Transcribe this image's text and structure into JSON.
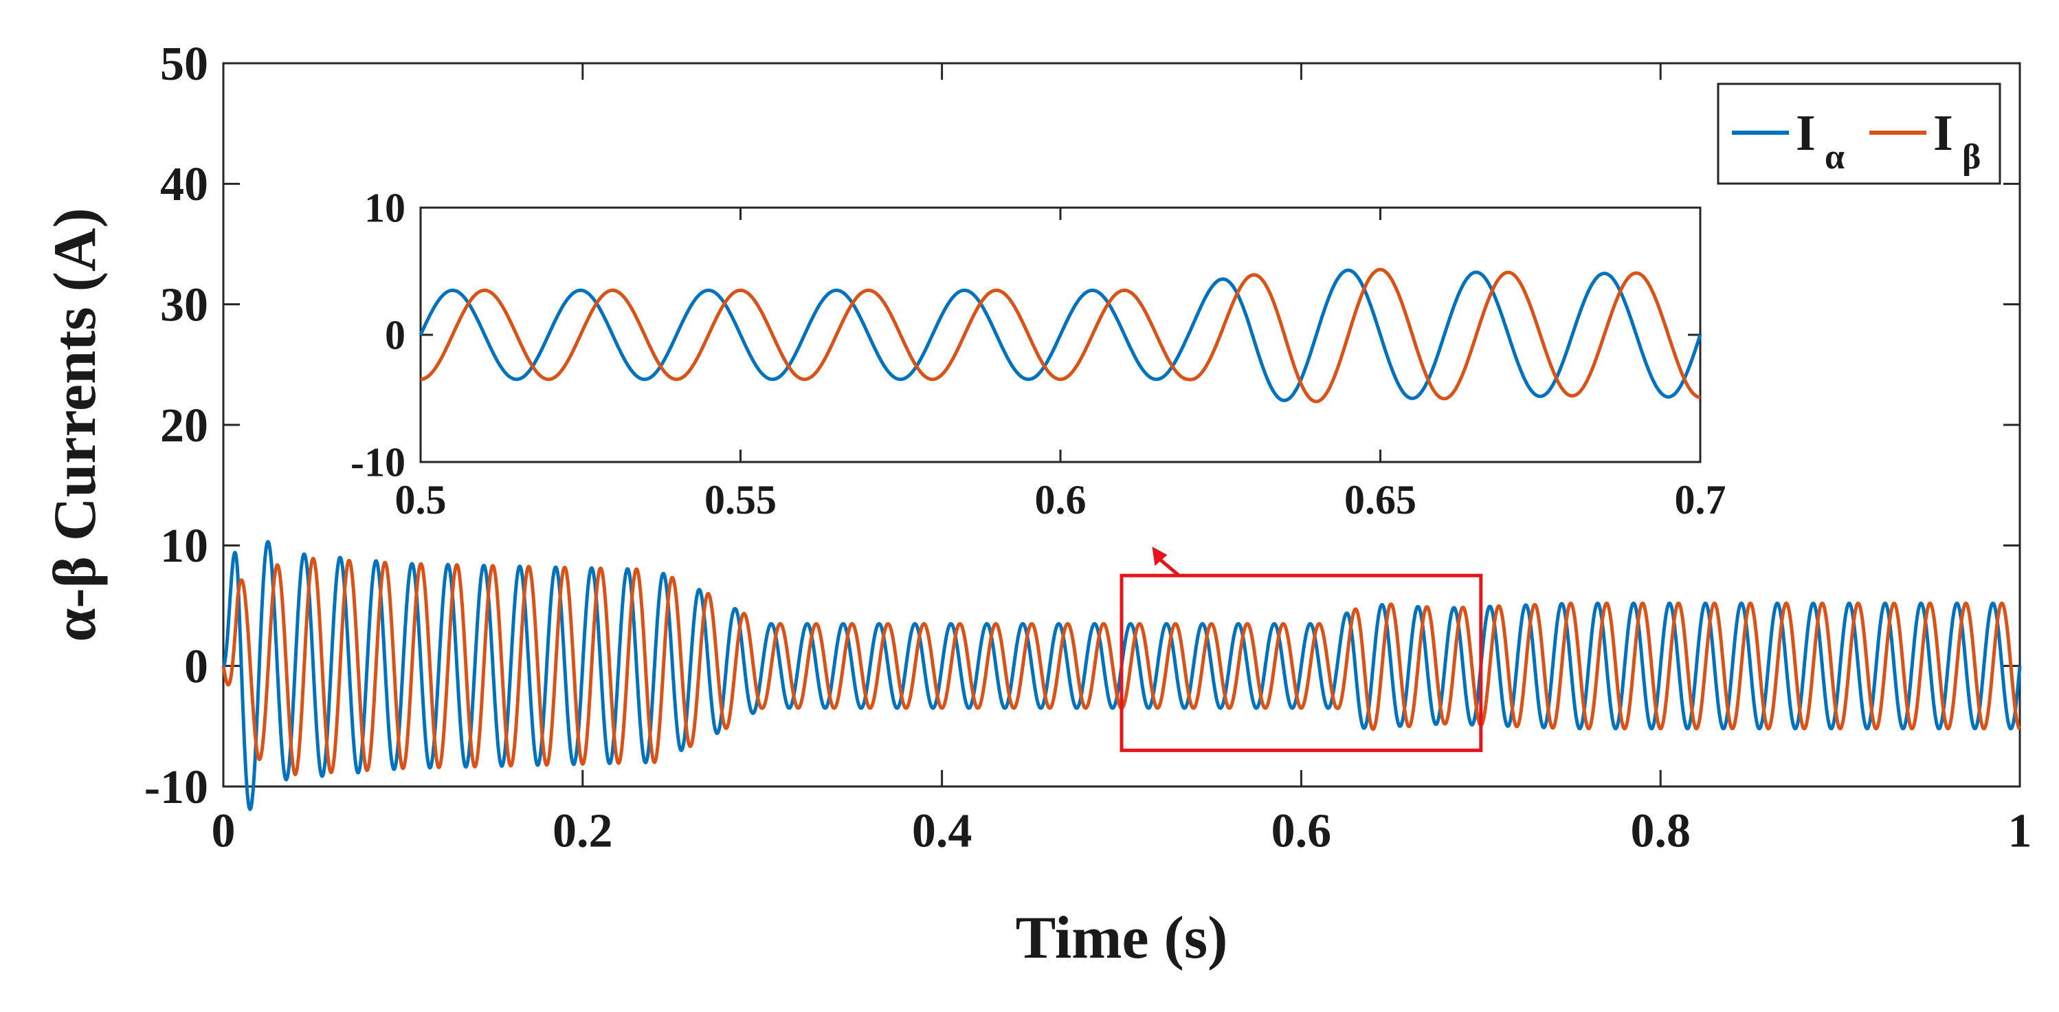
{
  "chart_data": {
    "type": "line",
    "xlabel": "Time (s)",
    "ylabel": "α-β Currents (A)",
    "xlim": [
      0,
      1
    ],
    "ylim": [
      -10,
      50
    ],
    "xticks": [
      0,
      0.2,
      0.4,
      0.6,
      0.8,
      1
    ],
    "xtick_labels": [
      "0",
      "0.2",
      "0.4",
      "0.6",
      "0.8",
      "1"
    ],
    "yticks": [
      -10,
      0,
      10,
      20,
      30,
      40,
      50
    ],
    "ytick_labels": [
      "-10",
      "0",
      "10",
      "20",
      "30",
      "40",
      "50"
    ],
    "frequency_hz": 50,
    "series": [
      {
        "name": "I_alpha",
        "label": "I",
        "subscript": "α",
        "color": "#0072BD",
        "phase": "sin",
        "amplitude_profile": [
          {
            "t": 0.0,
            "amp": 0.0
          },
          {
            "t": 0.008,
            "amp": 13.0
          },
          {
            "t": 0.03,
            "amp": 9.5
          },
          {
            "t": 0.1,
            "amp": 8.5
          },
          {
            "t": 0.24,
            "amp": 8.0
          },
          {
            "t": 0.27,
            "amp": 6.0
          },
          {
            "t": 0.3,
            "amp": 3.5
          },
          {
            "t": 0.62,
            "amp": 3.5
          },
          {
            "t": 0.63,
            "amp": 5.2
          },
          {
            "t": 0.68,
            "amp": 4.8
          },
          {
            "t": 0.75,
            "amp": 5.2
          },
          {
            "t": 1.0,
            "amp": 5.2
          }
        ]
      },
      {
        "name": "I_beta",
        "label": "I",
        "subscript": "β",
        "color": "#D95319",
        "phase": "-cos",
        "amplitude_profile": [
          {
            "t": 0.0,
            "amp": 0.0
          },
          {
            "t": 0.008,
            "amp": 7.0
          },
          {
            "t": 0.04,
            "amp": 9.0
          },
          {
            "t": 0.1,
            "amp": 8.5
          },
          {
            "t": 0.24,
            "amp": 8.0
          },
          {
            "t": 0.27,
            "amp": 6.0
          },
          {
            "t": 0.3,
            "amp": 3.5
          },
          {
            "t": 0.62,
            "amp": 3.5
          },
          {
            "t": 0.635,
            "amp": 5.3
          },
          {
            "t": 0.68,
            "amp": 4.8
          },
          {
            "t": 0.75,
            "amp": 5.2
          },
          {
            "t": 1.0,
            "amp": 5.2
          }
        ]
      }
    ],
    "highlight_box": {
      "x0": 0.5,
      "x1": 0.7,
      "y0": -7,
      "y1": 7.5,
      "color": "#E8141B"
    },
    "inset": {
      "xlim": [
        0.5,
        0.7
      ],
      "ylim": [
        -10,
        10
      ],
      "xticks": [
        0.5,
        0.55,
        0.6,
        0.65,
        0.7
      ],
      "xtick_labels": [
        "0.5",
        "0.55",
        "0.6",
        "0.65",
        "0.7"
      ],
      "yticks": [
        -10,
        0,
        10
      ],
      "ytick_labels": [
        "-10",
        "0",
        "10"
      ]
    },
    "legend": {
      "location": "top-right"
    }
  }
}
